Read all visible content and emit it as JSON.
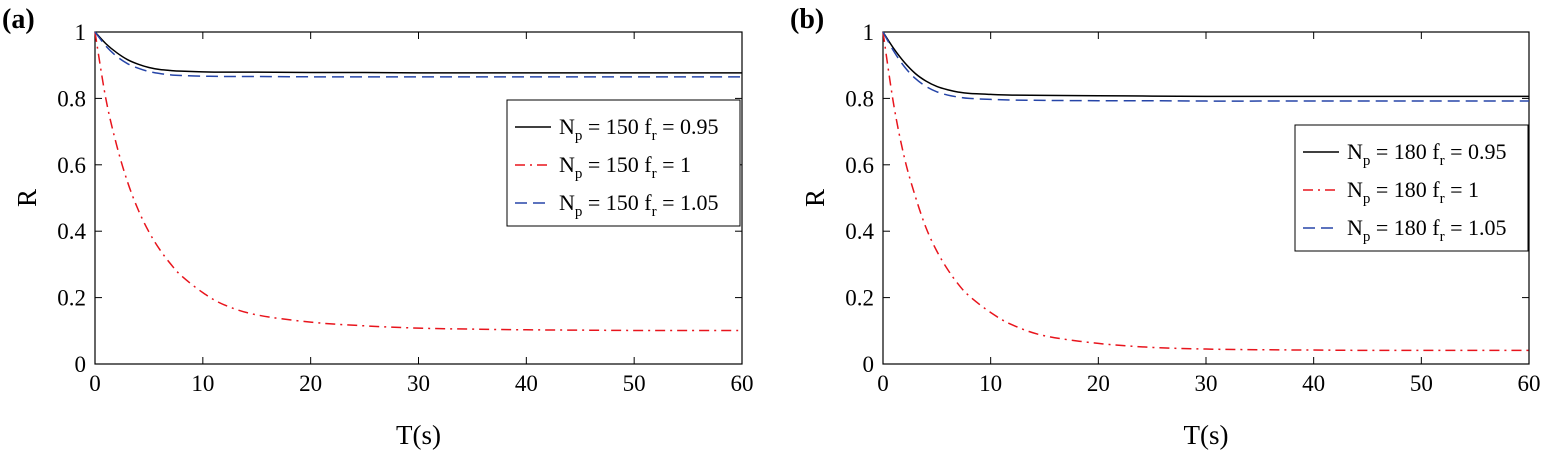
{
  "chart_data": [
    {
      "panel": "(a)",
      "type": "line",
      "xlabel": "T(s)",
      "ylabel": "R",
      "xlim": [
        0,
        60
      ],
      "ylim": [
        0,
        1
      ],
      "x_ticks": [
        "0",
        "10",
        "20",
        "30",
        "40",
        "50",
        "60"
      ],
      "y_ticks": [
        "0",
        "0.2",
        "0.4",
        "0.6",
        "0.8",
        "1"
      ],
      "grid": false,
      "legend_placement": "right",
      "x": [
        0,
        1,
        2,
        3,
        4,
        5,
        6,
        7,
        8,
        10,
        12,
        15,
        20,
        25,
        30,
        35,
        40,
        45,
        50,
        55,
        60
      ],
      "series": [
        {
          "name": "N_p = 150 f_r = 0.95",
          "legend": [
            "N",
            "p",
            " = 150 f",
            "r",
            " = 0.95"
          ],
          "style": "solid",
          "color": "#000000",
          "values": [
            1.0,
            0.965,
            0.938,
            0.917,
            0.903,
            0.893,
            0.887,
            0.884,
            0.882,
            0.88,
            0.879,
            0.879,
            0.878,
            0.878,
            0.877,
            0.877,
            0.877,
            0.877,
            0.877,
            0.877,
            0.877
          ]
        },
        {
          "name": "N_p = 150 f_r = 1",
          "legend": [
            "N",
            "p",
            " = 150 f",
            "r",
            " = 1"
          ],
          "style": "dashdot",
          "color": "#e8141c",
          "values": [
            1.0,
            0.8,
            0.66,
            0.55,
            0.465,
            0.398,
            0.345,
            0.302,
            0.266,
            0.215,
            0.178,
            0.148,
            0.126,
            0.115,
            0.108,
            0.105,
            0.103,
            0.102,
            0.101,
            0.101,
            0.101
          ]
        },
        {
          "name": "N_p = 150 f_r = 1.05",
          "legend": [
            "N",
            "p",
            " = 150 f",
            "r",
            " = 1.05"
          ],
          "style": "dashed",
          "color": "#2645a8",
          "values": [
            1.0,
            0.958,
            0.927,
            0.905,
            0.891,
            0.881,
            0.875,
            0.871,
            0.869,
            0.867,
            0.866,
            0.866,
            0.865,
            0.865,
            0.865,
            0.865,
            0.865,
            0.865,
            0.865,
            0.865,
            0.865
          ]
        }
      ]
    },
    {
      "panel": "(b)",
      "type": "line",
      "xlabel": "T(s)",
      "ylabel": "R",
      "xlim": [
        0,
        60
      ],
      "ylim": [
        0,
        1
      ],
      "x_ticks": [
        "0",
        "10",
        "20",
        "30",
        "40",
        "50",
        "60"
      ],
      "y_ticks": [
        "0",
        "0.2",
        "0.4",
        "0.6",
        "0.8",
        "1"
      ],
      "grid": false,
      "legend_placement": "right",
      "x": [
        0,
        1,
        2,
        3,
        4,
        5,
        6,
        7,
        8,
        10,
        12,
        15,
        20,
        25,
        30,
        35,
        40,
        45,
        50,
        55,
        60
      ],
      "series": [
        {
          "name": "N_p = 180 f_r = 0.95",
          "legend": [
            "N",
            "p",
            " = 180 f",
            "r",
            " = 0.95"
          ],
          "style": "solid",
          "color": "#000000",
          "values": [
            1.0,
            0.95,
            0.908,
            0.875,
            0.852,
            0.836,
            0.826,
            0.819,
            0.815,
            0.812,
            0.81,
            0.809,
            0.808,
            0.807,
            0.806,
            0.806,
            0.806,
            0.806,
            0.806,
            0.806,
            0.806
          ]
        },
        {
          "name": "N_p = 180 f_r = 1",
          "legend": [
            "N",
            "p",
            " = 180 f",
            "r",
            " = 1"
          ],
          "style": "dashdot",
          "color": "#e8141c",
          "values": [
            1.0,
            0.78,
            0.62,
            0.505,
            0.41,
            0.34,
            0.285,
            0.24,
            0.205,
            0.155,
            0.118,
            0.085,
            0.062,
            0.05,
            0.045,
            0.043,
            0.042,
            0.041,
            0.041,
            0.041,
            0.041
          ]
        },
        {
          "name": "N_p = 180 f_r = 1.05",
          "legend": [
            "N",
            "p",
            " = 180 f",
            "r",
            " = 1.05"
          ],
          "style": "dashed",
          "color": "#2645a8",
          "values": [
            1.0,
            0.942,
            0.895,
            0.86,
            0.836,
            0.82,
            0.81,
            0.804,
            0.8,
            0.797,
            0.795,
            0.794,
            0.793,
            0.793,
            0.792,
            0.792,
            0.792,
            0.792,
            0.792,
            0.792,
            0.792
          ]
        }
      ]
    }
  ]
}
